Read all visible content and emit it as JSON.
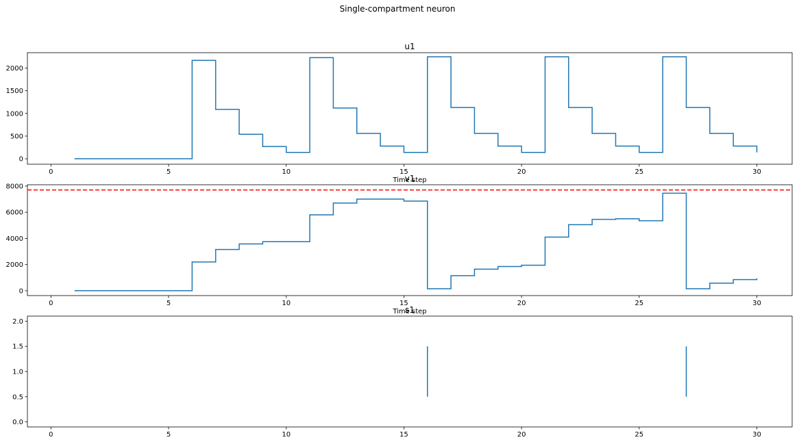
{
  "figure": {
    "suptitle": "Single-compartment neuron"
  },
  "colors": {
    "series": "#1f77b4",
    "threshold": "#ff0000",
    "axes": "#000000",
    "background": "#ffffff"
  },
  "chart_data": [
    {
      "type": "line",
      "drawstyle": "steps-post",
      "title": "u1",
      "xlabel": "Time step",
      "ylabel": "",
      "xlim": [
        -1,
        31.5
      ],
      "ylim": [
        -120,
        2340
      ],
      "xticks": [
        0,
        5,
        10,
        15,
        20,
        25,
        30
      ],
      "yticks": [
        0,
        500,
        1000,
        1500,
        2000
      ],
      "grid": false,
      "series": [
        {
          "x": [
            1,
            2,
            3,
            4,
            5,
            6,
            7,
            8,
            9,
            10,
            11,
            12,
            13,
            14,
            15,
            16,
            17,
            18,
            19,
            20,
            21,
            22,
            23,
            24,
            25,
            26,
            27,
            28,
            29,
            30
          ],
          "values": [
            0,
            0,
            0,
            0,
            0,
            2170,
            1090,
            540,
            270,
            140,
            2230,
            1120,
            560,
            280,
            140,
            2250,
            1130,
            560,
            280,
            140,
            2250,
            1130,
            560,
            280,
            140,
            2250,
            1130,
            560,
            280,
            140
          ]
        }
      ]
    },
    {
      "type": "line",
      "drawstyle": "steps-post",
      "title": "v1",
      "xlabel": "Time step",
      "ylabel": "",
      "xlim": [
        -1,
        31.5
      ],
      "ylim": [
        -370,
        8100
      ],
      "xticks": [
        0,
        5,
        10,
        15,
        20,
        25,
        30
      ],
      "yticks": [
        0,
        2000,
        4000,
        6000,
        8000
      ],
      "grid": false,
      "threshold_line": {
        "y": 7700,
        "style": "dashed"
      },
      "series": [
        {
          "x": [
            1,
            2,
            3,
            4,
            5,
            6,
            7,
            8,
            9,
            10,
            11,
            12,
            13,
            14,
            15,
            16,
            17,
            18,
            19,
            20,
            21,
            22,
            23,
            24,
            25,
            26,
            27,
            28,
            29,
            30
          ],
          "values": [
            0,
            0,
            0,
            0,
            0,
            2200,
            3150,
            3580,
            3750,
            3750,
            5800,
            6700,
            7000,
            7000,
            6850,
            150,
            1150,
            1650,
            1850,
            1950,
            4100,
            5050,
            5450,
            5500,
            5350,
            7450,
            150,
            580,
            850,
            950
          ]
        }
      ]
    },
    {
      "type": "scatter",
      "marker": "vertical-line",
      "title": "s1",
      "xlabel": "",
      "ylabel": "",
      "xlim": [
        -1,
        31.5
      ],
      "ylim": [
        -0.1,
        2.1
      ],
      "xticks": [
        0,
        5,
        10,
        15,
        20,
        25,
        30
      ],
      "yticks": [
        0.0,
        0.5,
        1.0,
        1.5,
        2.0
      ],
      "grid": false,
      "series": [
        {
          "x": [
            16,
            27
          ],
          "values": [
            1,
            1
          ],
          "extent": [
            0.5,
            1.5
          ]
        }
      ]
    }
  ]
}
